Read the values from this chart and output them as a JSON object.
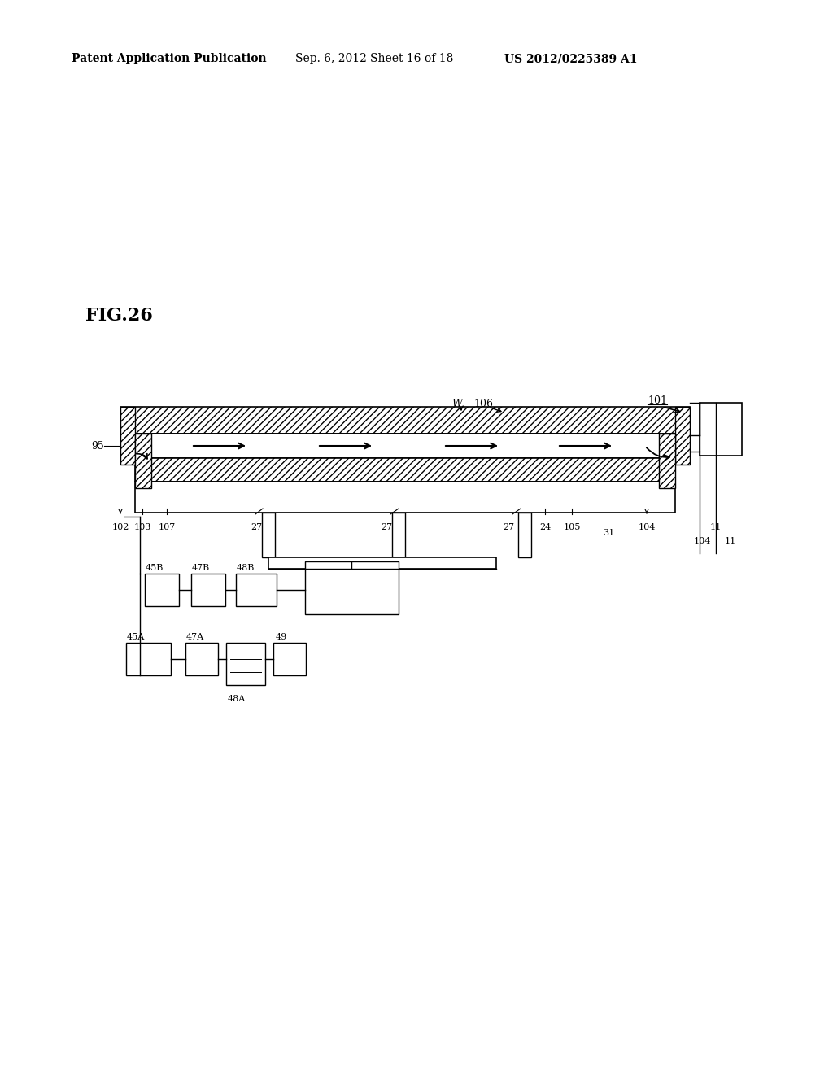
{
  "bg_color": "#ffffff",
  "header_left": "Patent Application Publication",
  "header_mid": "Sep. 6, 2012   Sheet 16 of 18",
  "header_right": "US 2012/0225389 A1",
  "fig_label": "FIG.26",
  "header_fontsize": 10,
  "fig_fontsize": 16
}
